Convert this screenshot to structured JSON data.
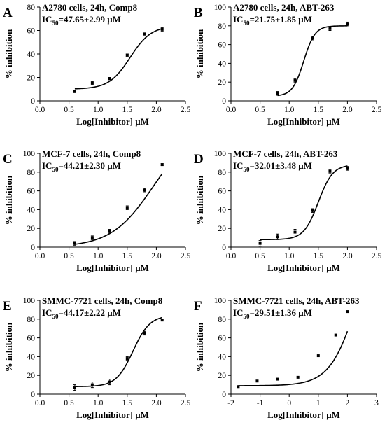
{
  "chart_data": [
    {
      "panel": "A",
      "type": "scatter",
      "condition": "A2780 cells, 24h, Comp8",
      "ic50_prefix": "IC",
      "ic50_sub": "50",
      "ic50_value": "=47.65±2.99 μM",
      "xlabel": "Log[Inhibitor] μM",
      "ylabel": "% inhibition",
      "xlim": [
        0.0,
        2.5
      ],
      "ylim": [
        0,
        80
      ],
      "xticks": [
        "0.0",
        "0.5",
        "1.0",
        "1.5",
        "2.0",
        "2.5"
      ],
      "yticks": [
        "0",
        "20",
        "40",
        "60",
        "80"
      ],
      "x": [
        0.6,
        0.9,
        1.2,
        1.5,
        1.8,
        2.1
      ],
      "y": [
        8,
        15,
        19,
        39,
        57,
        61
      ],
      "error": [
        1,
        1.5,
        1,
        1,
        1,
        1.5
      ],
      "fit": {
        "bottom": 10,
        "top": 64,
        "logEC50": 1.55,
        "hill": 2.4
      }
    },
    {
      "panel": "B",
      "type": "scatter",
      "condition": "A2780 cells, 24h, ABT-263",
      "ic50_prefix": "IC",
      "ic50_sub": "50",
      "ic50_value": "=21.75±1.85 μM",
      "xlabel": "Log[Inhibitor] μM",
      "ylabel": "% inhibition",
      "xlim": [
        0.0,
        2.5
      ],
      "ylim": [
        0,
        100
      ],
      "xticks": [
        "0.0",
        "0.5",
        "1.0",
        "1.5",
        "2.0",
        "2.5"
      ],
      "yticks": [
        "0",
        "20",
        "40",
        "60",
        "80",
        "100"
      ],
      "x": [
        0.8,
        1.1,
        1.4,
        1.7,
        2.0
      ],
      "y": [
        8,
        22,
        67,
        77,
        82
      ],
      "error": [
        2,
        2,
        2,
        2,
        2
      ],
      "fit": {
        "bottom": 5,
        "top": 80,
        "logEC50": 1.25,
        "hill": 4.5
      }
    },
    {
      "panel": "C",
      "type": "scatter",
      "condition": "MCF-7 cells, 24h, Comp8",
      "ic50_prefix": "IC",
      "ic50_sub": "50",
      "ic50_value": "=44.21±2.30 μM",
      "xlabel": "Log[Inhibitor] μM",
      "ylabel": "% inhibition",
      "xlim": [
        0.0,
        2.5
      ],
      "ylim": [
        0,
        100
      ],
      "xticks": [
        "0.0",
        "0.5",
        "1.0",
        "1.5",
        "2.0",
        "2.5"
      ],
      "yticks": [
        "0",
        "20",
        "40",
        "60",
        "80",
        "100"
      ],
      "x": [
        0.6,
        0.9,
        1.2,
        1.5,
        1.8,
        2.1
      ],
      "y": [
        4,
        10,
        17,
        42,
        61,
        88
      ],
      "error": [
        2,
        2,
        2,
        2,
        2,
        1
      ],
      "fit": {
        "bottom": 0,
        "top": 130,
        "logEC50": 1.95,
        "hill": 1.2
      }
    },
    {
      "panel": "D",
      "type": "scatter",
      "condition": "MCF-7 cells, 24h, ABT-263",
      "ic50_prefix": "IC",
      "ic50_sub": "50",
      "ic50_value": "=32.01±3.48 μM",
      "xlabel": "Log[Inhibitor] μM",
      "ylabel": "% inhibition",
      "xlim": [
        0.0,
        2.5
      ],
      "ylim": [
        0,
        100
      ],
      "xticks": [
        "0.0",
        "0.5",
        "1.0",
        "1.5",
        "2.0",
        "2.5"
      ],
      "yticks": [
        "0",
        "20",
        "40",
        "60",
        "80",
        "100"
      ],
      "x": [
        0.5,
        0.8,
        1.1,
        1.4,
        1.7,
        2.0
      ],
      "y": [
        4,
        11,
        16,
        39,
        81,
        84
      ],
      "error": [
        3,
        3,
        3,
        2,
        2,
        2
      ],
      "fit": {
        "bottom": 8,
        "top": 88,
        "logEC50": 1.5,
        "hill": 3.5
      }
    },
    {
      "panel": "E",
      "type": "scatter",
      "condition": "SMMC-7721 cells, 24h, Comp8",
      "ic50_prefix": "IC",
      "ic50_sub": "50",
      "ic50_value": "=44.17±2.22 μM",
      "xlabel": "Log[Inhibitor] μM",
      "ylabel": "% inhibition",
      "xlim": [
        0.0,
        2.5
      ],
      "ylim": [
        0,
        100
      ],
      "xticks": [
        "0.0",
        "0.5",
        "1.0",
        "1.5",
        "2.0",
        "2.5"
      ],
      "yticks": [
        "0",
        "20",
        "40",
        "60",
        "80",
        "100"
      ],
      "x": [
        0.6,
        0.9,
        1.2,
        1.5,
        1.8,
        2.1
      ],
      "y": [
        7,
        10,
        13,
        38,
        65,
        79
      ],
      "error": [
        3,
        3,
        3,
        2,
        2,
        1
      ],
      "fit": {
        "bottom": 8,
        "top": 84,
        "logEC50": 1.6,
        "hill": 3.0
      }
    },
    {
      "panel": "F",
      "type": "scatter",
      "condition": "SMMC-7721 cells, 24h, ABT-263",
      "ic50_prefix": "IC",
      "ic50_sub": "50",
      "ic50_value": "=29.51±1.36 μM",
      "xlabel": "Log[Inhibitor] μM",
      "ylabel": "% inhibition",
      "xlim": [
        -2,
        3
      ],
      "ylim": [
        0,
        100
      ],
      "xticks": [
        "-2",
        "-1",
        "0",
        "1",
        "2",
        "3"
      ],
      "yticks": [
        "0",
        "20",
        "40",
        "60",
        "80",
        "100"
      ],
      "x": [
        -1.75,
        -1.1,
        -0.4,
        0.3,
        1.0,
        1.6,
        2.0
      ],
      "y": [
        8,
        14,
        16,
        18,
        41,
        63,
        88
      ],
      "error": [
        0,
        0,
        0,
        0,
        0,
        0,
        0
      ],
      "fit": {
        "bottom": 9,
        "top": 200,
        "logEC50": 2.4,
        "hill": 0.9
      }
    }
  ]
}
